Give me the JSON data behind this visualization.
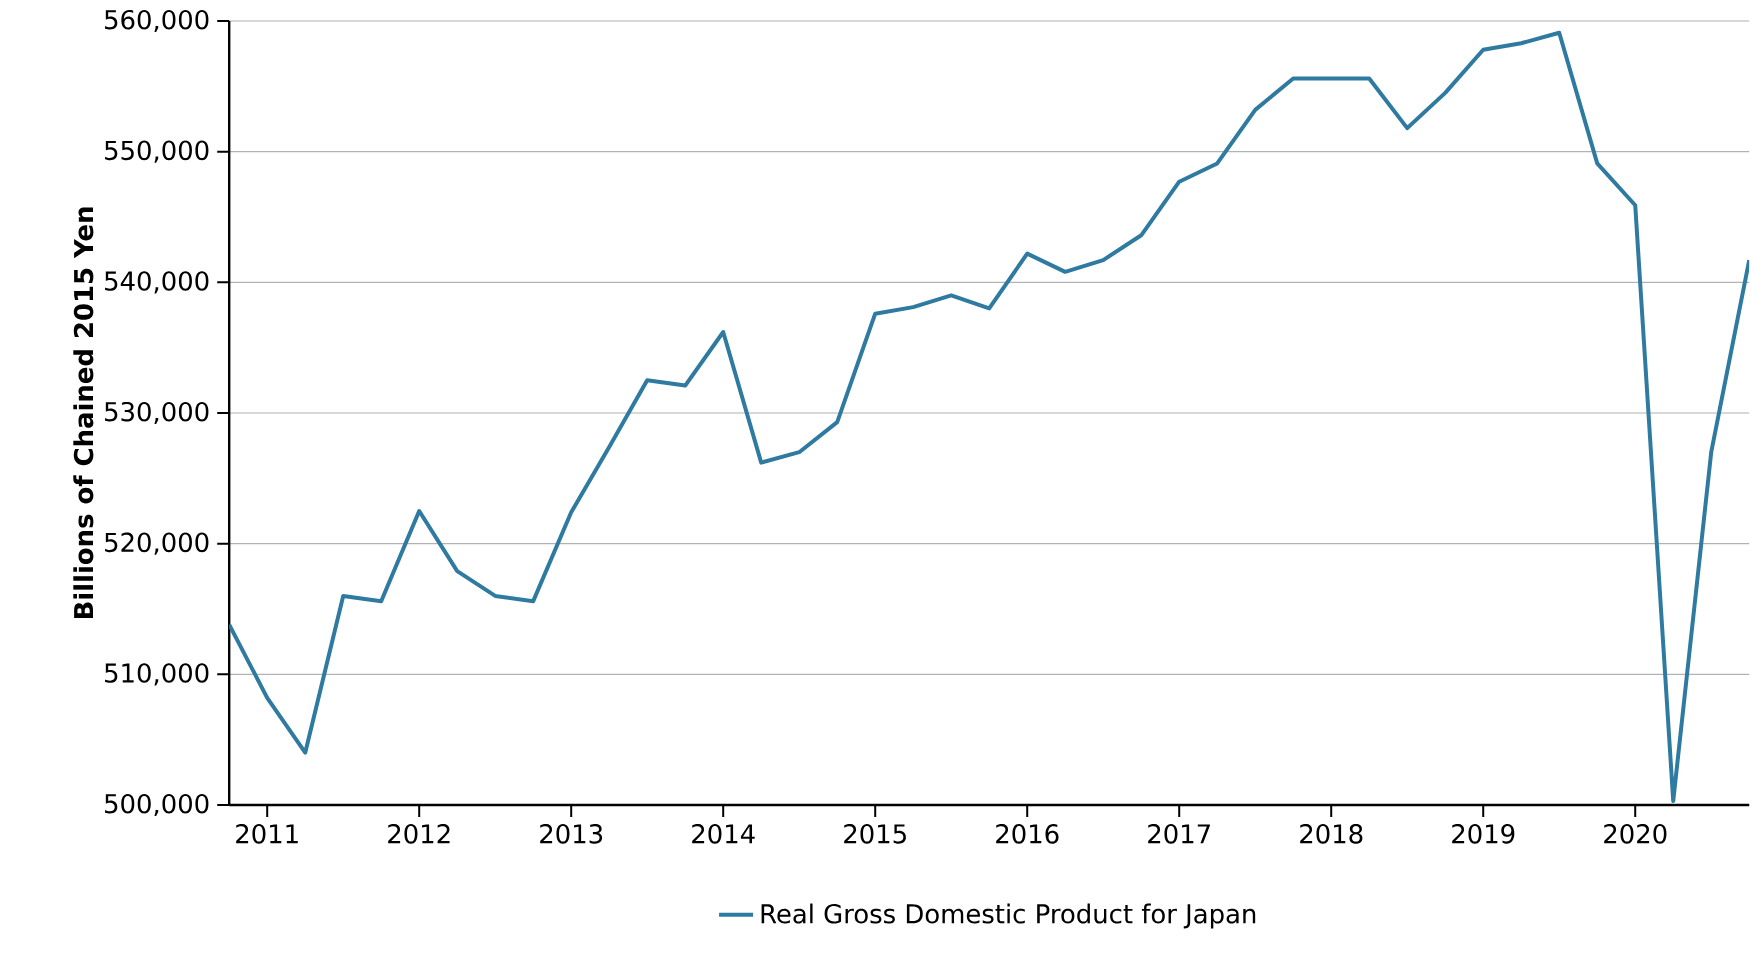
{
  "chart_data": {
    "type": "line",
    "ylabel": "Billions of Chained 2015 Yen",
    "x": [
      "2010-10",
      "2011-01",
      "2011-04",
      "2011-07",
      "2011-10",
      "2012-01",
      "2012-04",
      "2012-07",
      "2012-10",
      "2013-01",
      "2013-04",
      "2013-07",
      "2013-10",
      "2014-01",
      "2014-04",
      "2014-07",
      "2014-10",
      "2015-01",
      "2015-04",
      "2015-07",
      "2015-10",
      "2016-01",
      "2016-04",
      "2016-07",
      "2016-10",
      "2017-01",
      "2017-04",
      "2017-07",
      "2017-10",
      "2018-01",
      "2018-04",
      "2018-07",
      "2018-10",
      "2019-01",
      "2019-04",
      "2019-07",
      "2019-10",
      "2020-01",
      "2020-04",
      "2020-07",
      "2020-10"
    ],
    "series": [
      {
        "name": "Real Gross Domestic Product for Japan",
        "color": "#2e7aa0",
        "values": [
          513800,
          508200,
          504000,
          516000,
          515600,
          522500,
          517900,
          516000,
          515600,
          522400,
          527400,
          532500,
          532100,
          536200,
          526200,
          527000,
          529300,
          537600,
          538100,
          539000,
          538000,
          542200,
          540800,
          541700,
          543600,
          547700,
          549100,
          553200,
          555600,
          555600,
          555600,
          551800,
          554500,
          557800,
          558300,
          559100,
          549100,
          545900,
          500300,
          527000,
          541700
        ]
      }
    ],
    "xlim": [
      "2010-10",
      "2020-10"
    ],
    "xticks": [
      "2011",
      "2012",
      "2013",
      "2014",
      "2015",
      "2016",
      "2017",
      "2018",
      "2019",
      "2020"
    ],
    "ylim": [
      500000,
      560000
    ],
    "yticks": [
      {
        "value": 500000,
        "label": "500,000"
      },
      {
        "value": 510000,
        "label": "510,000"
      },
      {
        "value": 520000,
        "label": "520,000"
      },
      {
        "value": 530000,
        "label": "530,000"
      },
      {
        "value": 540000,
        "label": "540,000"
      },
      {
        "value": 550000,
        "label": "550,000"
      },
      {
        "value": 560000,
        "label": "560,000"
      }
    ],
    "grid": "y",
    "legend": "bottom",
    "marker": "none",
    "line_style": "solid"
  }
}
